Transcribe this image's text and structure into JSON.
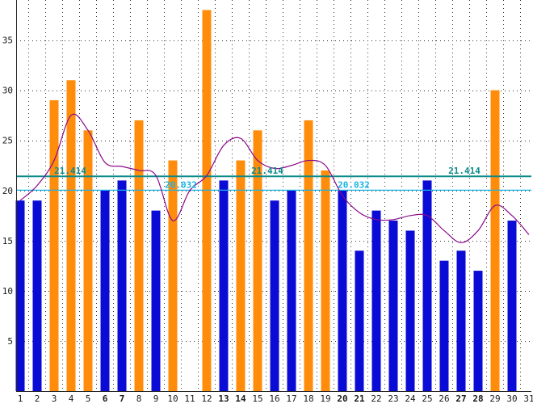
{
  "chart_data": {
    "type": "bar",
    "categories": [
      "1",
      "2",
      "3",
      "4",
      "5",
      "6",
      "7",
      "8",
      "9",
      "10",
      "11",
      "12",
      "13",
      "14",
      "15",
      "16",
      "17",
      "18",
      "19",
      "20",
      "21",
      "22",
      "23",
      "24",
      "25",
      "26",
      "27",
      "28",
      "29",
      "30",
      "31"
    ],
    "values": [
      19,
      19,
      29,
      31,
      26,
      20,
      21,
      27,
      18,
      23,
      null,
      38,
      21,
      23,
      26,
      19,
      20,
      27,
      22,
      20,
      14,
      18,
      17,
      16,
      21,
      13,
      14,
      12,
      30,
      17,
      null
    ],
    "bar_colors": [
      "#0b0bd6",
      "#0b0bd6",
      "#ff8c0a",
      "#ff8c0a",
      "#ff8c0a",
      "#0b0bd6",
      "#0b0bd6",
      "#ff8c0a",
      "#0b0bd6",
      "#ff8c0a",
      "#0b0bd6",
      "#ff8c0a",
      "#0b0bd6",
      "#ff8c0a",
      "#ff8c0a",
      "#0b0bd6",
      "#0b0bd6",
      "#ff8c0a",
      "#ff8c0a",
      "#0b0bd6",
      "#0b0bd6",
      "#0b0bd6",
      "#0b0bd6",
      "#0b0bd6",
      "#0b0bd6",
      "#0b0bd6",
      "#0b0bd6",
      "#0b0bd6",
      "#ff8c0a",
      "#0b0bd6",
      "#0b0bd6"
    ],
    "highlighted_x_labels": [
      "6",
      "7",
      "13",
      "14",
      "20",
      "21",
      "27",
      "28"
    ],
    "x_label_color": "#1a1a1a",
    "highlighted_x_label_color": "#0b0bb4",
    "y_ticks": [
      5,
      10,
      15,
      20,
      25,
      30,
      35
    ],
    "ylim": [
      0,
      39
    ],
    "grid": "dotted",
    "reference_lines": [
      {
        "value": 21.414,
        "label": "21.414",
        "color": "#0a8a8a",
        "label_x": [
          87,
          331,
          575
        ]
      },
      {
        "value": 20.032,
        "label": "20.032",
        "color": "#18b4e6",
        "label_x": [
          224,
          438
        ]
      }
    ],
    "trend_line": {
      "color": "#8b0a8b",
      "values": [
        19,
        20.5,
        23,
        27.5,
        26,
        22.8,
        22.4,
        22,
        21.5,
        17,
        20,
        21.5,
        24.5,
        25.2,
        23,
        22.2,
        22.5,
        23,
        22.5,
        19.5,
        17.8,
        17.1,
        17.1,
        17.5,
        17.5,
        16,
        14.8,
        16,
        18.5,
        17.5,
        15.6
      ]
    }
  }
}
